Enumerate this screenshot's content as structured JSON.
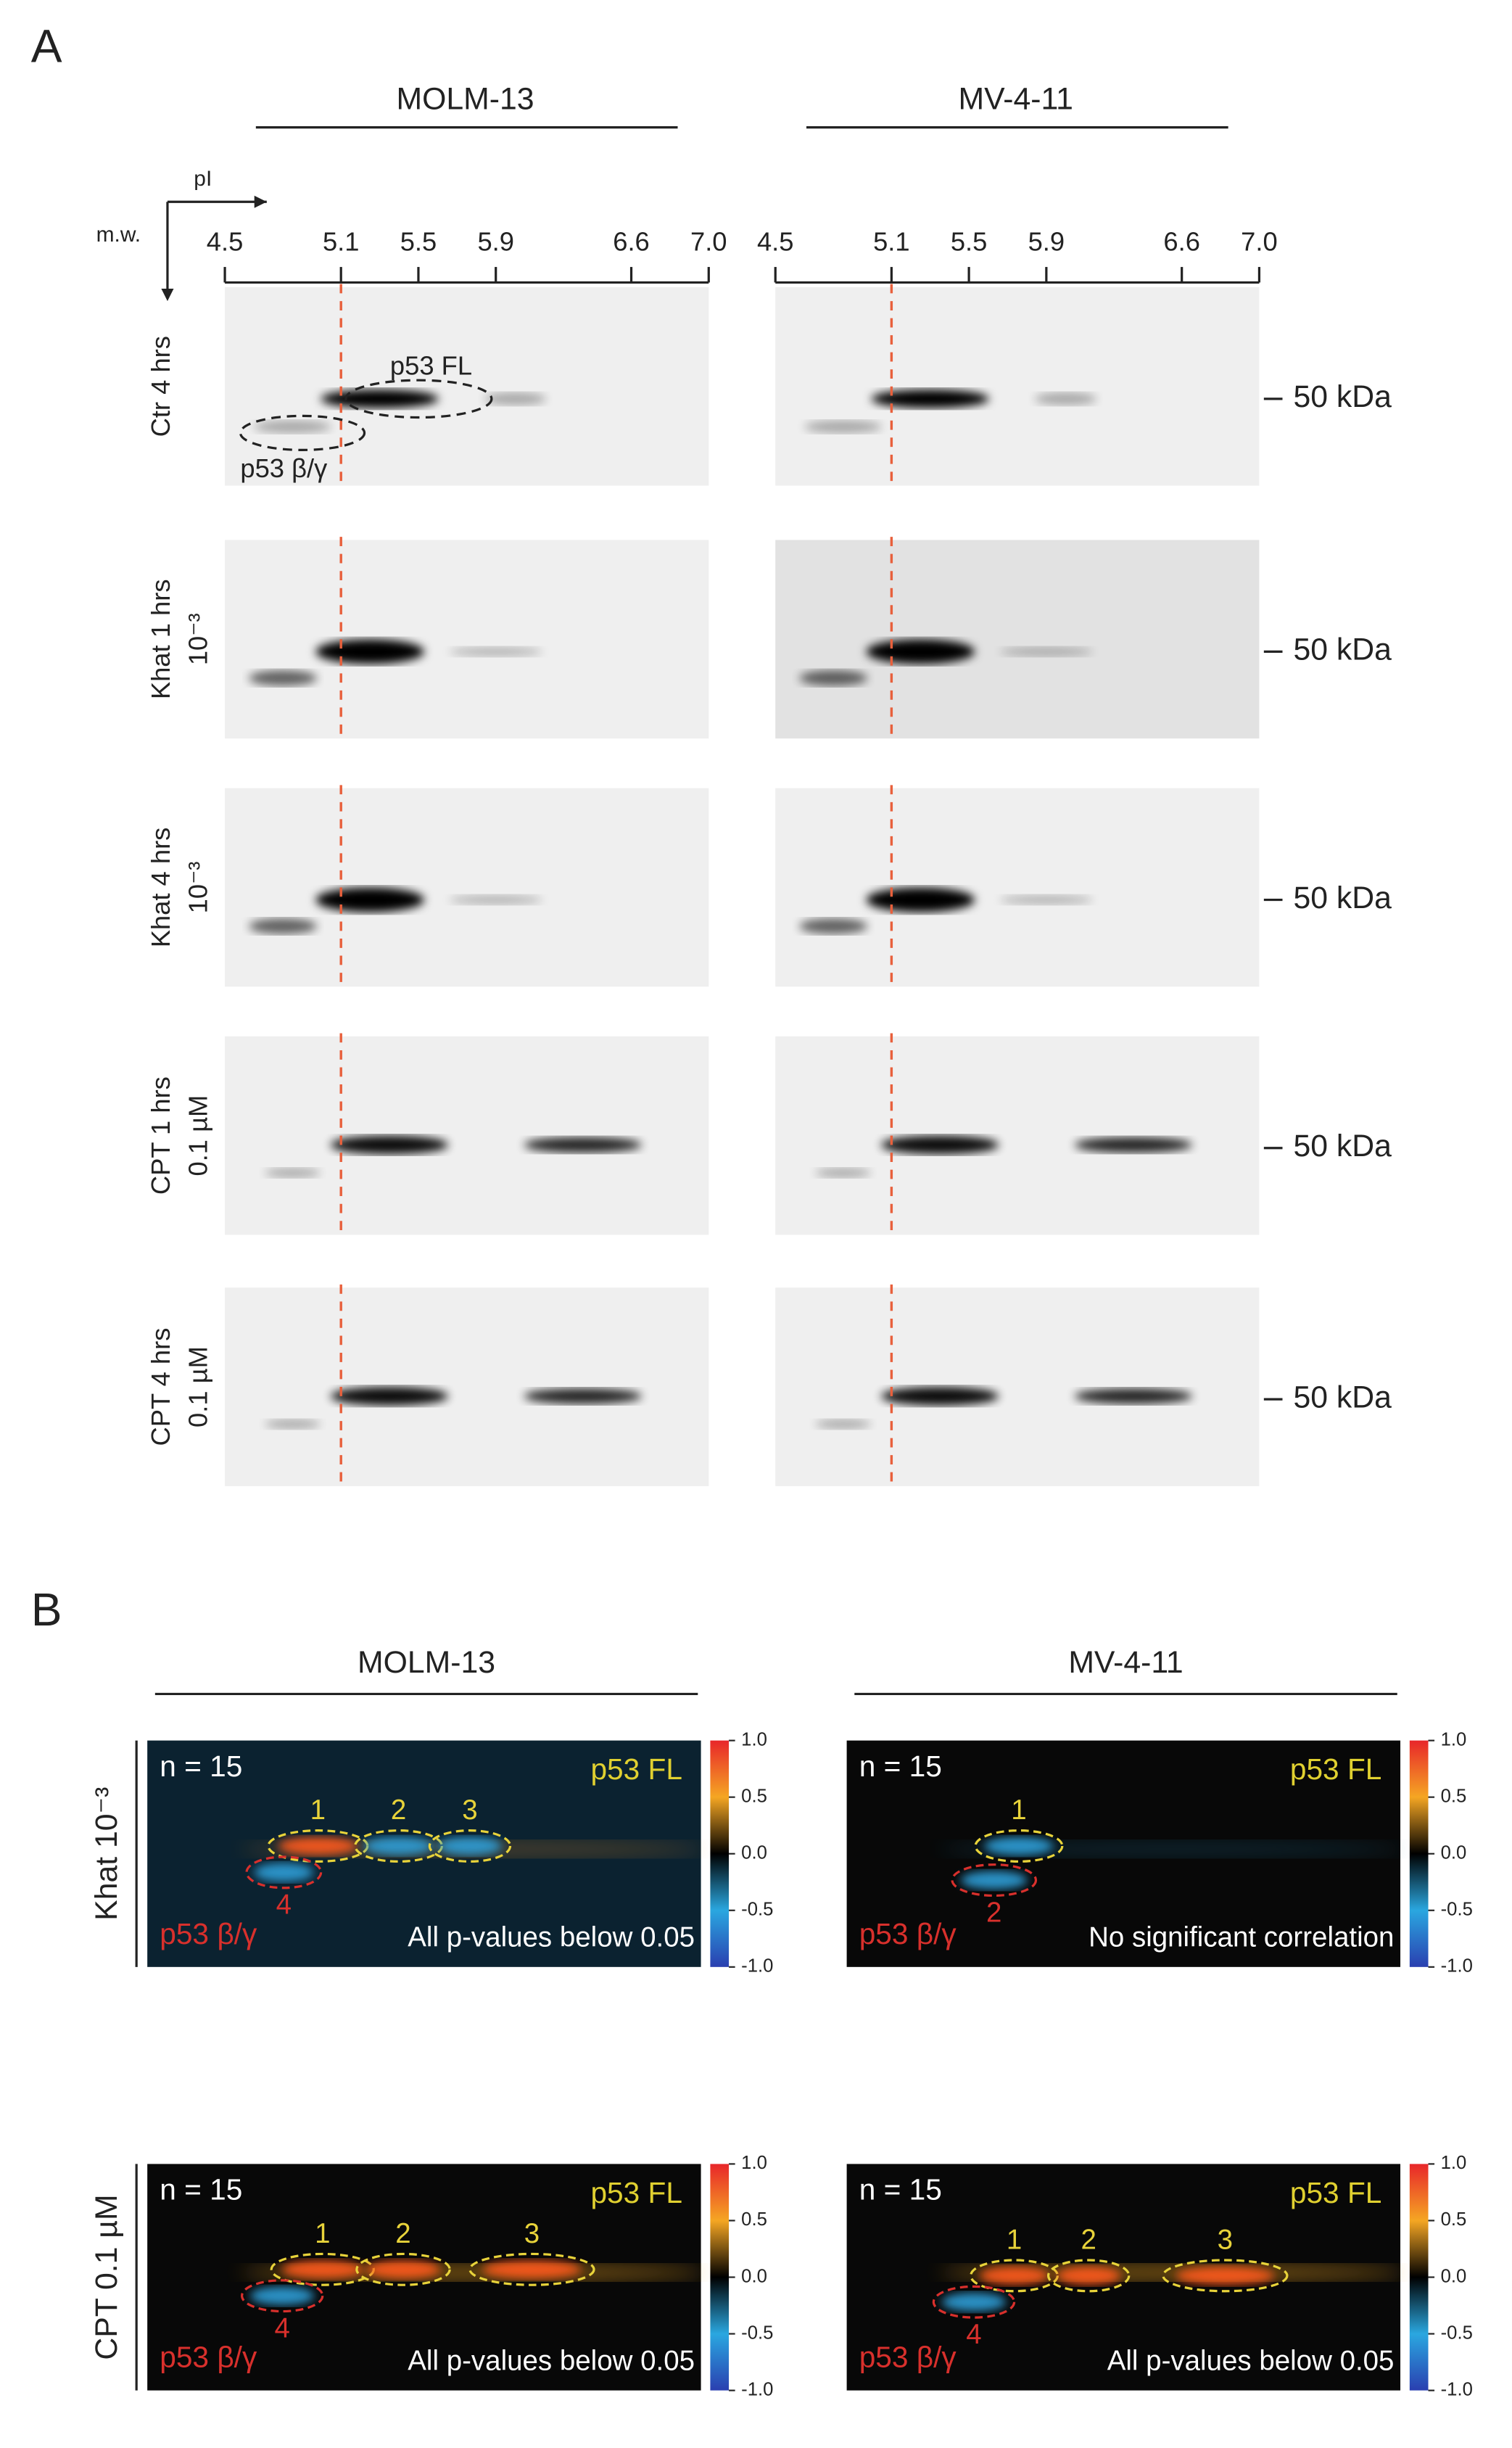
{
  "panel_a": {
    "label": "A",
    "cell_lines": [
      "MOLM-13",
      "MV-4-11"
    ],
    "x_label": "pI",
    "y_label": "m.w.",
    "xlim": [
      4.5,
      7
    ],
    "xticks": [
      4.5,
      5.1,
      5.5,
      5.9,
      6.6,
      {
        "value": 7,
        "label": "7.0"
      }
    ],
    "rows": [
      {
        "label": [
          "Ctr 4 hrs"
        ],
        "mw": "50 kDa"
      },
      {
        "label": [
          "Khat 1 hrs",
          "10⁻³"
        ],
        "mw": "50 kDa"
      },
      {
        "label": [
          "Khat 4 hrs",
          "10⁻³"
        ],
        "mw": "50 kDa"
      },
      {
        "label": [
          "CPT 1 hrs",
          "0.1 µM"
        ],
        "mw": "50 kDa"
      },
      {
        "label": [
          "CPT 4 hrs",
          "0.1 µM"
        ],
        "mw": "50 kDa"
      }
    ],
    "spot_labels": [
      "p53 FL",
      "p53 β/γ"
    ]
  },
  "panel_b": {
    "label": "B",
    "cell_lines": [
      "MOLM-13",
      "MV-4-11"
    ],
    "rows": [
      "Khat 10⁻³",
      "CPT 0.1 µM"
    ],
    "colorbar_lim": [
      -1,
      1
    ],
    "colorbar_ticks": [
      {
        "value": 1,
        "label": "1.0"
      },
      0.5,
      {
        "value": 0,
        "label": "0.0"
      },
      -0.5,
      {
        "value": -1,
        "label": "-1.0"
      }
    ],
    "panels": [
      [
        {
          "n": "n = 15",
          "fl": "p53 FL",
          "bg": "p53 β/γ",
          "note": "All p-values below 0.05",
          "spots": [
            "1",
            "2",
            "3",
            "4"
          ]
        },
        {
          "n": "n = 15",
          "fl": "p53 FL",
          "bg": "p53 β/γ",
          "note": "No significant correlation",
          "spots": [
            "1",
            "2"
          ]
        }
      ],
      [
        {
          "n": "n = 15",
          "fl": "p53 FL",
          "bg": "p53 β/γ",
          "note": "All p-values below 0.05",
          "spots": [
            "1",
            "2",
            "3",
            "4"
          ]
        },
        {
          "n": "n = 15",
          "fl": "p53 FL",
          "bg": "p53 β/γ",
          "note": "All p-values below 0.05",
          "spots": [
            "1",
            "2",
            "3",
            "4"
          ]
        }
      ]
    ]
  }
}
